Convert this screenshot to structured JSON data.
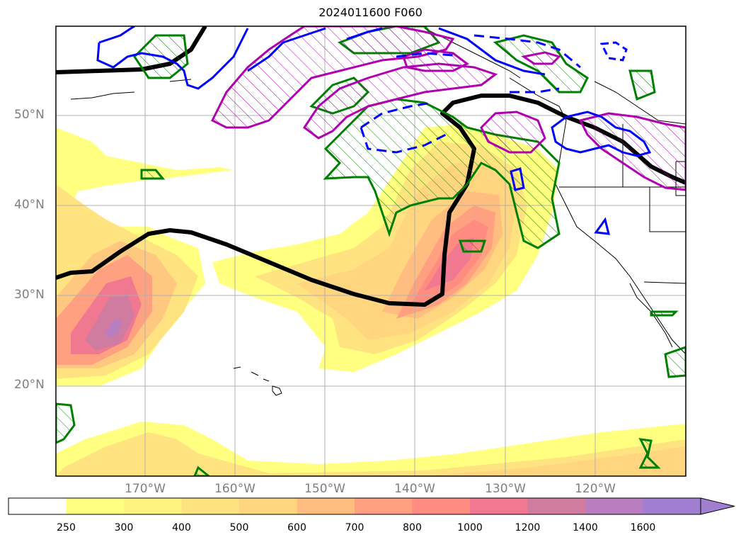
{
  "title": "2024011600 F060",
  "lat_labels": [
    "50°N",
    "40°N",
    "30°N",
    "20°N"
  ],
  "lon_labels": [
    "170°W",
    "160°W",
    "150°W",
    "140°W",
    "130°W",
    "120°W"
  ],
  "colorbar": {
    "ticks": [
      "250",
      "300",
      "400",
      "500",
      "600",
      "700",
      "800",
      "1000",
      "1200",
      "1400",
      "1600"
    ],
    "colors": [
      "#ffffff",
      "#ffff80",
      "#fff380",
      "#ffe380",
      "#ffd580",
      "#ffbd80",
      "#ffa080",
      "#ff8c80",
      "#f07890",
      "#d07ba0",
      "#b87ec0",
      "#a07fd0"
    ]
  },
  "map_colors": {
    "ocean": "#ffffff",
    "ivt_low": "#ffff80",
    "ivt_mid": "#ffd580",
    "ivt_high": "#ff8c80",
    "ivt_peak": "#c07ab0",
    "jet_line": "#000000",
    "green_contour": "#008000",
    "magenta_contour": "#b000b0",
    "blue_contour": "#0000ff"
  }
}
